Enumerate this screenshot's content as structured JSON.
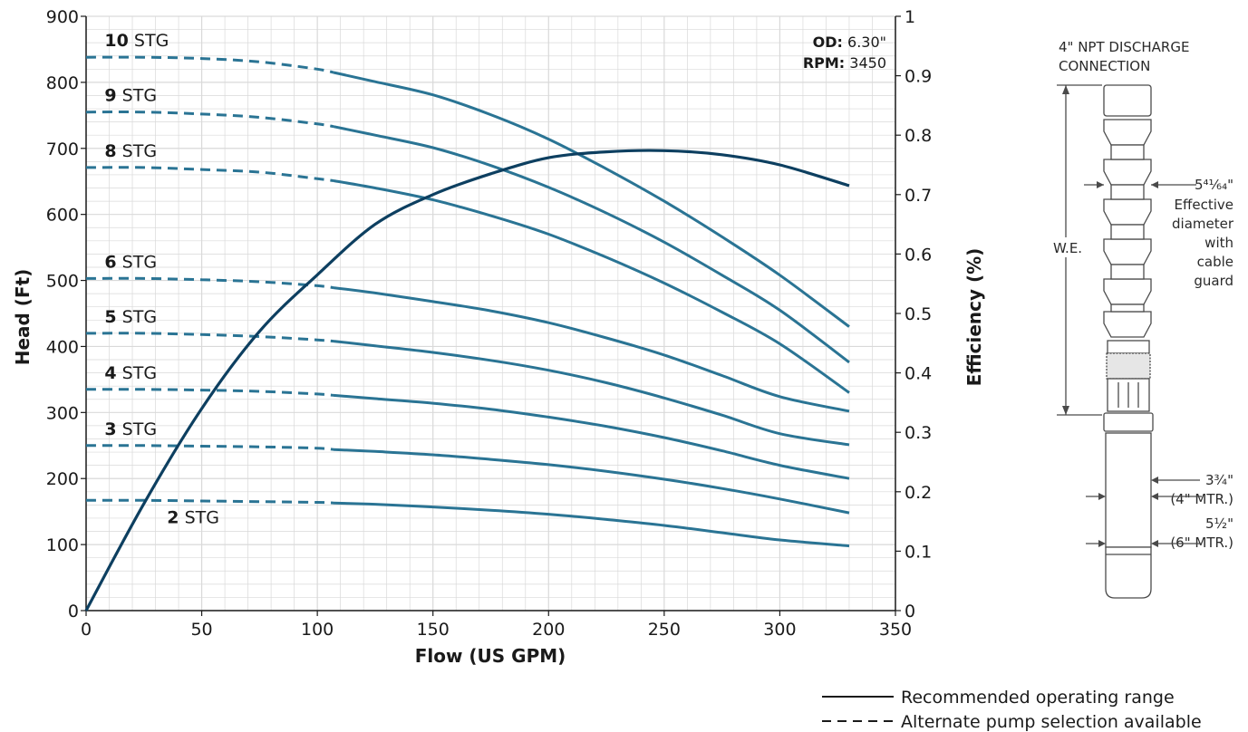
{
  "chart_data": {
    "type": "line",
    "xlabel": "Flow (US GPM)",
    "ylabel": "Head (Ft)",
    "y2label": "Efficiency (%)",
    "xlim": [
      0,
      350
    ],
    "ylim": [
      0,
      900
    ],
    "y2lim": [
      0,
      1
    ],
    "x_ticks": [
      "0",
      "50",
      "100",
      "150",
      "200",
      "250",
      "300",
      "350"
    ],
    "y_ticks": [
      "0",
      "100",
      "200",
      "300",
      "400",
      "500",
      "600",
      "700",
      "800",
      "900"
    ],
    "y2_ticks": [
      "0",
      "0.1",
      "0.2",
      "0.3",
      "0.4",
      "0.5",
      "0.6",
      "0.7",
      "0.8",
      "0.9",
      "1"
    ],
    "grid": true,
    "dashed_until_x": 107,
    "series": [
      {
        "name": "10",
        "suffix": " STG",
        "x": [
          0,
          25,
          50,
          75,
          100,
          107,
          125,
          150,
          175,
          200,
          225,
          250,
          275,
          300,
          330
        ],
        "values": [
          838,
          838,
          836,
          831,
          820,
          815,
          801,
          781,
          751,
          714,
          669,
          620,
          566,
          508,
          430
        ]
      },
      {
        "name": "9",
        "suffix": " STG",
        "x": [
          0,
          25,
          50,
          75,
          100,
          107,
          125,
          150,
          175,
          200,
          225,
          250,
          275,
          300,
          330
        ],
        "values": [
          755,
          755,
          752,
          747,
          737,
          733,
          720,
          701,
          674,
          641,
          602,
          558,
          508,
          455,
          376
        ]
      },
      {
        "name": "8",
        "suffix": " STG",
        "x": [
          0,
          25,
          50,
          75,
          100,
          107,
          125,
          150,
          175,
          200,
          225,
          250,
          275,
          300,
          330
        ],
        "values": [
          671,
          671,
          668,
          664,
          654,
          651,
          640,
          622,
          598,
          570,
          535,
          496,
          452,
          404,
          330
        ]
      },
      {
        "name": "6",
        "suffix": " STG",
        "x": [
          0,
          25,
          50,
          75,
          100,
          107,
          125,
          150,
          175,
          200,
          225,
          250,
          275,
          300,
          330
        ],
        "values": [
          503,
          503,
          501,
          498,
          492,
          489,
          481,
          468,
          454,
          436,
          413,
          387,
          356,
          324,
          302
        ]
      },
      {
        "name": "5",
        "suffix": " STG",
        "x": [
          0,
          25,
          50,
          75,
          100,
          107,
          125,
          150,
          175,
          200,
          225,
          250,
          275,
          300,
          330
        ],
        "values": [
          420,
          420,
          418,
          415,
          410,
          408,
          401,
          391,
          379,
          364,
          345,
          322,
          296,
          268,
          251
        ]
      },
      {
        "name": "4",
        "suffix": " STG",
        "x": [
          0,
          25,
          50,
          75,
          100,
          107,
          125,
          150,
          175,
          200,
          225,
          250,
          275,
          300,
          330
        ],
        "values": [
          335,
          335,
          334,
          332,
          328,
          326,
          321,
          314,
          305,
          293,
          279,
          262,
          242,
          220,
          200
        ]
      },
      {
        "name": "3",
        "suffix": " STG",
        "x": [
          0,
          25,
          50,
          75,
          100,
          107,
          125,
          150,
          175,
          200,
          225,
          250,
          275,
          300,
          330
        ],
        "values": [
          250,
          250,
          249,
          248,
          246,
          244,
          241,
          236,
          229,
          221,
          211,
          199,
          185,
          169,
          148
        ]
      },
      {
        "name": "2",
        "suffix": " STG",
        "x": [
          0,
          25,
          50,
          75,
          100,
          107,
          125,
          150,
          175,
          200,
          225,
          250,
          275,
          300,
          330
        ],
        "values": [
          167,
          167,
          166,
          165,
          164,
          163,
          161,
          157,
          152,
          146,
          138,
          129,
          118,
          107,
          98
        ]
      }
    ],
    "efficiency": {
      "x": [
        0,
        25,
        50,
        75,
        100,
        125,
        150,
        175,
        200,
        225,
        250,
        275,
        300,
        330
      ],
      "values": [
        0,
        0.18,
        0.34,
        0.47,
        0.565,
        0.65,
        0.7,
        0.735,
        0.762,
        0.772,
        0.774,
        0.767,
        0.75,
        0.715
      ]
    },
    "annotations": {
      "od_label": "OD:",
      "od_value": " 6.30\"",
      "rpm_label": "RPM:",
      "rpm_value": " 3450"
    },
    "legend": {
      "solid": "Recommended operating range",
      "dashed": "Alternate pump selection available"
    }
  },
  "colors": {
    "series": "#2a7494",
    "efficiency": "#0d3f60",
    "grid": "#d9d9d9"
  },
  "pump": {
    "discharge_line1": "4\" NPT DISCHARGE",
    "discharge_line2": "CONNECTION",
    "we": "W.E.",
    "diam_value": "5⁴¹⁄₆₄\"",
    "diam_lines": [
      "Effective",
      "diameter",
      "with",
      "cable",
      "guard"
    ],
    "motor4_value": "3¾\"",
    "motor4_label": "(4\" MTR.)",
    "motor6_value": "5½\"",
    "motor6_label": "(6\" MTR.)"
  }
}
